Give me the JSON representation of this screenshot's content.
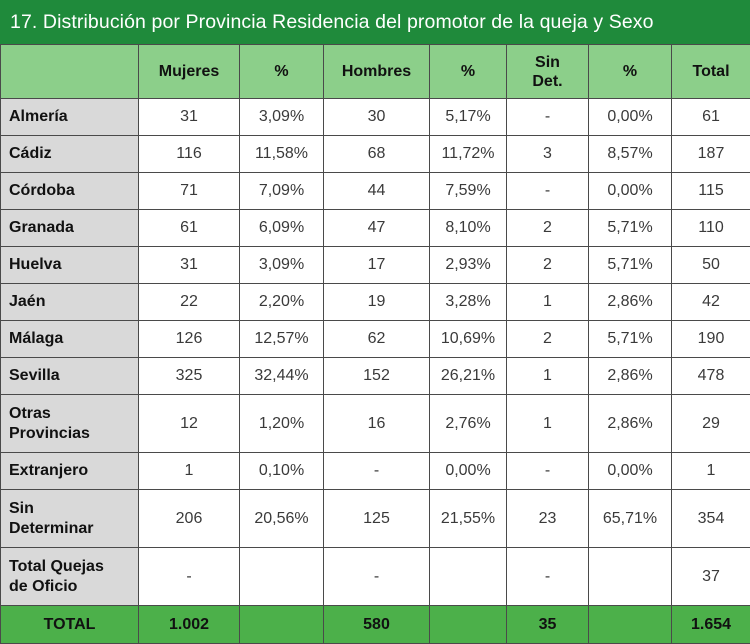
{
  "title": "17. Distribución por Provincia Residencia del promotor de la queja y Sexo",
  "columns": {
    "mujeres": "Mujeres",
    "pct1": "%",
    "hombres": "Hombres",
    "pct2": "%",
    "sin_det_1": "Sin",
    "sin_det_2": "Det.",
    "pct3": "%",
    "total": "Total"
  },
  "rows": [
    {
      "label": [
        "Almería"
      ],
      "mujeres": "31",
      "pct_m": "3,09%",
      "hombres": "30",
      "pct_h": "5,17%",
      "sindet": "-",
      "pct_s": "0,00%",
      "total": "61"
    },
    {
      "label": [
        "Cádiz"
      ],
      "mujeres": "116",
      "pct_m": "11,58%",
      "hombres": "68",
      "pct_h": "11,72%",
      "sindet": "3",
      "pct_s": "8,57%",
      "total": "187"
    },
    {
      "label": [
        "Córdoba"
      ],
      "mujeres": "71",
      "pct_m": "7,09%",
      "hombres": "44",
      "pct_h": "7,59%",
      "sindet": "-",
      "pct_s": "0,00%",
      "total": "115"
    },
    {
      "label": [
        "Granada"
      ],
      "mujeres": "61",
      "pct_m": "6,09%",
      "hombres": "47",
      "pct_h": "8,10%",
      "sindet": "2",
      "pct_s": "5,71%",
      "total": "110"
    },
    {
      "label": [
        "Huelva"
      ],
      "mujeres": "31",
      "pct_m": "3,09%",
      "hombres": "17",
      "pct_h": "2,93%",
      "sindet": "2",
      "pct_s": "5,71%",
      "total": "50"
    },
    {
      "label": [
        "Jaén"
      ],
      "mujeres": "22",
      "pct_m": "2,20%",
      "hombres": "19",
      "pct_h": "3,28%",
      "sindet": "1",
      "pct_s": "2,86%",
      "total": "42"
    },
    {
      "label": [
        "Málaga"
      ],
      "mujeres": "126",
      "pct_m": "12,57%",
      "hombres": "62",
      "pct_h": "10,69%",
      "sindet": "2",
      "pct_s": "5,71%",
      "total": "190"
    },
    {
      "label": [
        "Sevilla"
      ],
      "mujeres": "325",
      "pct_m": "32,44%",
      "hombres": "152",
      "pct_h": "26,21%",
      "sindet": "1",
      "pct_s": "2,86%",
      "total": "478"
    },
    {
      "label": [
        "Otras",
        "Provincias"
      ],
      "mujeres": "12",
      "pct_m": "1,20%",
      "hombres": "16",
      "pct_h": "2,76%",
      "sindet": "1",
      "pct_s": "2,86%",
      "total": "29"
    },
    {
      "label": [
        "Extranjero"
      ],
      "mujeres": "1",
      "pct_m": "0,10%",
      "hombres": "-",
      "pct_h": "0,00%",
      "sindet": "-",
      "pct_s": "0,00%",
      "total": "1"
    },
    {
      "label": [
        "Sin",
        "Determinar"
      ],
      "mujeres": "206",
      "pct_m": "20,56%",
      "hombres": "125",
      "pct_h": "21,55%",
      "sindet": "23",
      "pct_s": "65,71%",
      "total": "354"
    },
    {
      "label": [
        "Total Quejas",
        "de Oficio"
      ],
      "mujeres": "-",
      "pct_m": "",
      "hombres": "-",
      "pct_h": "",
      "sindet": "-",
      "pct_s": "",
      "total": "37"
    }
  ],
  "footer": {
    "label": "TOTAL",
    "mujeres": "1.002",
    "pct_m": "",
    "hombres": "580",
    "pct_h": "",
    "sindet": "35",
    "pct_s": "",
    "total": "1.654"
  },
  "colors": {
    "title_bar": "#1f8a3b",
    "header_bg": "#8ccf8a",
    "row_label_bg": "#d9d9d9",
    "footer_bg": "#4cb04a"
  }
}
